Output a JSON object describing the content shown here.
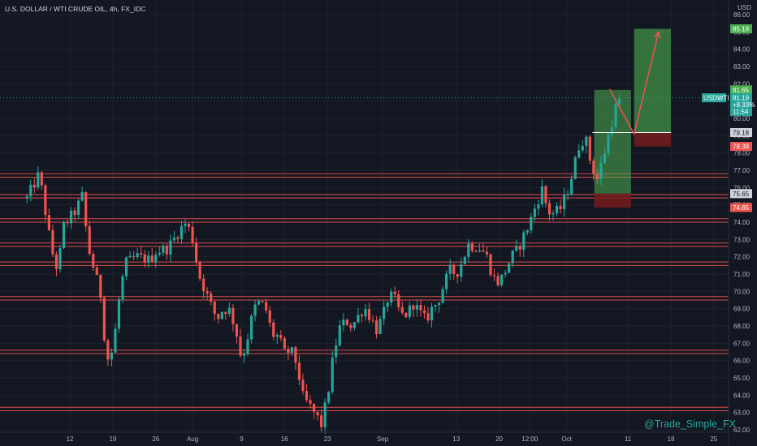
{
  "chart_data": {
    "type": "candlestick",
    "title": "U.S. DOLLAR / WTI CRUDE OIL, 4h, FX_IDC",
    "currency_label": "USD",
    "watermark": "@Trade_Simple_FX",
    "y_axis": {
      "range": [
        62,
        86
      ],
      "ticks": [
        62,
        63,
        64,
        65,
        66,
        67,
        68,
        69,
        70,
        71,
        72,
        73,
        74,
        75,
        76,
        77,
        78,
        79,
        80,
        81,
        82,
        83,
        84,
        85,
        86
      ],
      "tick_labels": [
        "62.00",
        "63.00",
        "64.00",
        "65.00",
        "66.00",
        "67.00",
        "68.00",
        "69.00",
        "70.00",
        "71.00",
        "72.00",
        "73.00",
        "74.00",
        "75.00",
        "76.00",
        "77.00",
        "78.00",
        "79.00",
        "80.00",
        "81.00",
        "82.00",
        "83.00",
        "84.00",
        "85.00",
        "86.00"
      ]
    },
    "x_axis": {
      "ticks": [
        {
          "label": "12",
          "t": 12
        },
        {
          "label": "19",
          "t": 19
        },
        {
          "label": "26",
          "t": 26
        },
        {
          "label": "Aug",
          "t": 32
        },
        {
          "label": "9",
          "t": 40
        },
        {
          "label": "16",
          "t": 47
        },
        {
          "label": "23",
          "t": 54
        },
        {
          "label": "Sep",
          "t": 63
        },
        {
          "label": "13",
          "t": 75
        },
        {
          "label": "20",
          "t": 82
        },
        {
          "label": "12:00",
          "t": 87
        },
        {
          "label": "Oct",
          "t": 93
        },
        {
          "label": "11",
          "t": 103
        },
        {
          "label": "18",
          "t": 110
        },
        {
          "label": "25",
          "t": 117
        }
      ]
    },
    "price_path": [
      {
        "t": 5,
        "p": 75.4
      },
      {
        "t": 7,
        "p": 76.8
      },
      {
        "t": 9,
        "p": 72.4
      },
      {
        "t": 10,
        "p": 71.2
      },
      {
        "t": 11,
        "p": 73.8
      },
      {
        "t": 13,
        "p": 74.7
      },
      {
        "t": 14,
        "p": 75.5
      },
      {
        "t": 15,
        "p": 72.5
      },
      {
        "t": 16,
        "p": 71.2
      },
      {
        "t": 17,
        "p": 69.8
      },
      {
        "t": 18,
        "p": 66.0
      },
      {
        "t": 19,
        "p": 66.6
      },
      {
        "t": 20,
        "p": 69.5
      },
      {
        "t": 21,
        "p": 71.6
      },
      {
        "t": 23,
        "p": 72.0
      },
      {
        "t": 25,
        "p": 71.8
      },
      {
        "t": 26,
        "p": 72.3
      },
      {
        "t": 28,
        "p": 72.5
      },
      {
        "t": 30,
        "p": 73.6
      },
      {
        "t": 31,
        "p": 74.0
      },
      {
        "t": 32,
        "p": 73.0
      },
      {
        "t": 33,
        "p": 71.0
      },
      {
        "t": 35,
        "p": 69.2
      },
      {
        "t": 36,
        "p": 68.4
      },
      {
        "t": 37,
        "p": 69.0
      },
      {
        "t": 38,
        "p": 68.9
      },
      {
        "t": 39,
        "p": 67.9
      },
      {
        "t": 40,
        "p": 66.0
      },
      {
        "t": 41,
        "p": 67.4
      },
      {
        "t": 42,
        "p": 69.0
      },
      {
        "t": 43,
        "p": 69.4
      },
      {
        "t": 44,
        "p": 68.9
      },
      {
        "t": 45,
        "p": 67.5
      },
      {
        "t": 46,
        "p": 67.4
      },
      {
        "t": 47,
        "p": 66.4
      },
      {
        "t": 48,
        "p": 66.6
      },
      {
        "t": 49,
        "p": 65.8
      },
      {
        "t": 50,
        "p": 63.9
      },
      {
        "t": 52,
        "p": 62.9
      },
      {
        "t": 53,
        "p": 62.3
      },
      {
        "t": 54,
        "p": 63.9
      },
      {
        "t": 55,
        "p": 66.4
      },
      {
        "t": 56,
        "p": 67.9
      },
      {
        "t": 57,
        "p": 68.3
      },
      {
        "t": 58,
        "p": 68.0
      },
      {
        "t": 60,
        "p": 69.1
      },
      {
        "t": 61,
        "p": 68.5
      },
      {
        "t": 62,
        "p": 67.8
      },
      {
        "t": 63,
        "p": 68.5
      },
      {
        "t": 64,
        "p": 69.8
      },
      {
        "t": 65,
        "p": 69.5
      },
      {
        "t": 66,
        "p": 68.6
      },
      {
        "t": 67,
        "p": 68.7
      },
      {
        "t": 68,
        "p": 69.3
      },
      {
        "t": 70,
        "p": 68.3
      },
      {
        "t": 71,
        "p": 69.0
      },
      {
        "t": 72,
        "p": 69.4
      },
      {
        "t": 73,
        "p": 70.4
      },
      {
        "t": 74,
        "p": 71.2
      },
      {
        "t": 75,
        "p": 71.0
      },
      {
        "t": 76,
        "p": 71.8
      },
      {
        "t": 77,
        "p": 72.7
      },
      {
        "t": 79,
        "p": 72.5
      },
      {
        "t": 80,
        "p": 72.0
      },
      {
        "t": 81,
        "p": 70.8
      },
      {
        "t": 82,
        "p": 70.5
      },
      {
        "t": 83,
        "p": 71.2
      },
      {
        "t": 84,
        "p": 72.0
      },
      {
        "t": 85,
        "p": 72.4
      },
      {
        "t": 86,
        "p": 73.2
      },
      {
        "t": 87,
        "p": 74.0
      },
      {
        "t": 88,
        "p": 75.0
      },
      {
        "t": 89,
        "p": 75.9
      },
      {
        "t": 90,
        "p": 74.6
      },
      {
        "t": 91,
        "p": 74.5
      },
      {
        "t": 92,
        "p": 74.8
      },
      {
        "t": 93,
        "p": 75.6
      },
      {
        "t": 94,
        "p": 76.9
      },
      {
        "t": 95,
        "p": 78.4
      },
      {
        "t": 96,
        "p": 79.0
      },
      {
        "t": 97,
        "p": 77.3
      },
      {
        "t": 98,
        "p": 76.5
      },
      {
        "t": 99,
        "p": 77.8
      },
      {
        "t": 100,
        "p": 79.3
      },
      {
        "t": 101,
        "p": 80.6
      },
      {
        "t": 102,
        "p": 81.2
      }
    ],
    "horizontal_levels": [
      [
        76.6,
        76.8
      ],
      [
        75.4,
        75.6
      ],
      [
        74.0,
        74.2
      ],
      [
        72.6,
        72.8
      ],
      [
        71.5,
        71.7
      ],
      [
        69.5,
        69.7
      ],
      [
        66.4,
        66.6
      ],
      [
        63.1,
        63.3
      ]
    ],
    "trade_setup": {
      "long_entry_zone": {
        "t_start": 97.5,
        "t_end": 103.5,
        "p_top": 81.65,
        "p_bottom": 75.65
      },
      "long_stop_zone": {
        "t_start": 97.5,
        "t_end": 103.5,
        "p_top": 75.65,
        "p_bottom": 74.85
      },
      "target_zone": {
        "t_start": 104,
        "t_end": 110,
        "p_top": 85.18,
        "p_bottom": 79.18
      },
      "target_stop_zone": {
        "t_start": 104,
        "t_end": 110,
        "p_top": 79.18,
        "p_bottom": 78.38
      },
      "entry_line": {
        "t_start": 97.2,
        "t_end": 110,
        "p": 79.18
      },
      "projected_path": [
        {
          "t": 100,
          "p": 81.7
        },
        {
          "t": 104,
          "p": 79.1
        },
        {
          "t": 108,
          "p": 85.0
        }
      ]
    },
    "price_badges": [
      {
        "label": "85.18",
        "p": 85.18,
        "bg": "#4caf50",
        "fg": "#ffffff"
      },
      {
        "label": "81.65",
        "p": 81.65,
        "bg": "#4caf50",
        "fg": "#ffffff"
      },
      {
        "label": "81.19",
        "p": 81.19,
        "bg": "#26a69a",
        "fg": "#ffffff"
      },
      {
        "label": "+8.33%",
        "p": 80.79,
        "bg": "#26a69a",
        "fg": "#ffffff"
      },
      {
        "label": "11:54",
        "p": 80.39,
        "bg": "#26a69a",
        "fg": "#ffffff"
      },
      {
        "label": "79.18",
        "p": 79.18,
        "bg": "#d1d4dc",
        "fg": "#131722"
      },
      {
        "label": "78.38",
        "p": 78.38,
        "bg": "#ef5350",
        "fg": "#ffffff"
      },
      {
        "label": "75.65",
        "p": 75.65,
        "bg": "#d1d4dc",
        "fg": "#131722"
      },
      {
        "label": "74.85",
        "p": 74.85,
        "bg": "#ef5350",
        "fg": "#ffffff"
      }
    ],
    "symbol_badge": {
      "label": "USDWTI",
      "p": 81.19
    },
    "colors": {
      "background": "#131722",
      "up": "#26a69a",
      "down": "#ef5350",
      "level_line": "#ef5350",
      "grid": "#1e222d",
      "target_zone": "#4caf50",
      "stop_zone": "#7a1c1c"
    }
  }
}
